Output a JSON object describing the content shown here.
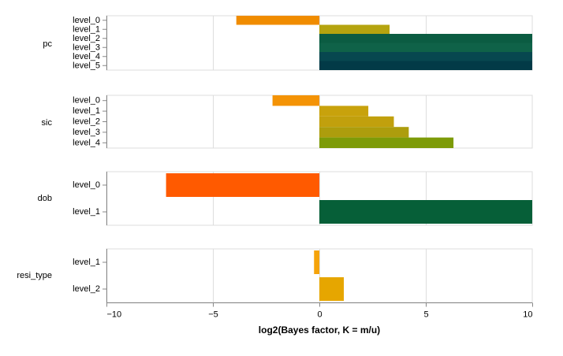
{
  "chart_data": {
    "type": "bar",
    "orientation": "horizontal",
    "xlabel": "log2(Bayes factor, K = m/u)",
    "xlim": [
      -10,
      10
    ],
    "xticks": [
      {
        "value": -10,
        "label": "−10"
      },
      {
        "value": -5,
        "label": "−5"
      },
      {
        "value": 0,
        "label": "0"
      },
      {
        "value": 5,
        "label": "5"
      },
      {
        "value": 10,
        "label": "10"
      }
    ],
    "grid": true,
    "panels": [
      {
        "name": "pc",
        "bars": [
          {
            "level": "level_0",
            "value": -3.9,
            "color": "#f08c00"
          },
          {
            "level": "level_1",
            "value": 3.3,
            "color": "#b5a40f"
          },
          {
            "level": "level_2",
            "value": 10,
            "color": "#0b5c42"
          },
          {
            "level": "level_3",
            "value": 10,
            "color": "#0f6248"
          },
          {
            "level": "level_4",
            "value": 10,
            "color": "#07474f"
          },
          {
            "level": "level_5",
            "value": 10,
            "color": "#023a47"
          }
        ]
      },
      {
        "name": "sic",
        "bars": [
          {
            "level": "level_0",
            "value": -2.2,
            "color": "#f49305"
          },
          {
            "level": "level_1",
            "value": 2.3,
            "color": "#c8a20c"
          },
          {
            "level": "level_2",
            "value": 3.5,
            "color": "#c1a00d"
          },
          {
            "level": "level_3",
            "value": 4.2,
            "color": "#ad9d0d"
          },
          {
            "level": "level_4",
            "value": 6.3,
            "color": "#7d9b08"
          }
        ]
      },
      {
        "name": "dob",
        "bars": [
          {
            "level": "level_0",
            "value": -7.2,
            "color": "#ff5a00"
          },
          {
            "level": "level_1",
            "value": 10,
            "color": "#065f38"
          }
        ]
      },
      {
        "name": "resi_type",
        "bars": [
          {
            "level": "level_1",
            "value": -0.25,
            "color": "#f5a30a"
          },
          {
            "level": "level_2",
            "value": 1.15,
            "color": "#e6a600"
          }
        ]
      }
    ]
  }
}
